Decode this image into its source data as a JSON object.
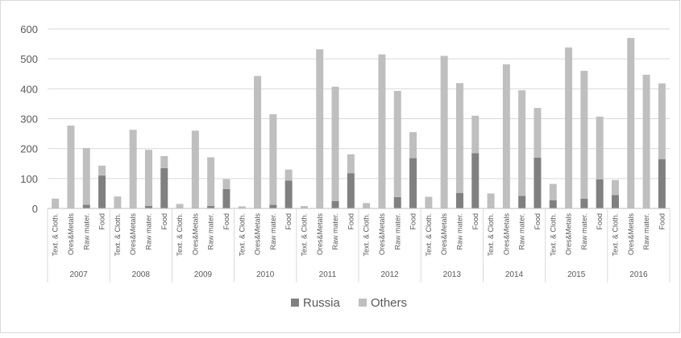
{
  "chart_data": {
    "type": "bar",
    "stacked": true,
    "ylim": [
      0,
      600
    ],
    "yticks": [
      0,
      100,
      200,
      300,
      400,
      500,
      600
    ],
    "grid": true,
    "legend_position": "bottom",
    "colors": {
      "Russia": "#808080",
      "Others": "#bfbfbf",
      "grid": "#d9d9d9",
      "axis": "#bfbfbf",
      "text": "#595959"
    },
    "categories": [
      "Text. & Cloth.",
      "Ores&Metals",
      "Raw mater.",
      "Food"
    ],
    "years": [
      "2007",
      "2008",
      "2009",
      "2010",
      "2011",
      "2012",
      "2013",
      "2014",
      "2015",
      "2016"
    ],
    "series": [
      {
        "name": "Russia",
        "values": [
          [
            0,
            0,
            12,
            110
          ],
          [
            0,
            0,
            8,
            135
          ],
          [
            0,
            0,
            8,
            65
          ],
          [
            0,
            0,
            12,
            93
          ],
          [
            0,
            0,
            25,
            118
          ],
          [
            0,
            0,
            38,
            168
          ],
          [
            0,
            0,
            52,
            185
          ],
          [
            0,
            0,
            42,
            170
          ],
          [
            27,
            0,
            33,
            97
          ],
          [
            45,
            0,
            0,
            165
          ]
        ]
      },
      {
        "name": "Others",
        "values": [
          [
            33,
            277,
            190,
            33
          ],
          [
            40,
            263,
            188,
            40
          ],
          [
            15,
            260,
            163,
            33
          ],
          [
            7,
            443,
            303,
            37
          ],
          [
            8,
            532,
            382,
            63
          ],
          [
            18,
            515,
            355,
            87
          ],
          [
            39,
            510,
            367,
            125
          ],
          [
            50,
            482,
            353,
            166
          ],
          [
            55,
            538,
            427,
            210
          ],
          [
            50,
            570,
            447,
            253
          ]
        ]
      }
    ]
  }
}
